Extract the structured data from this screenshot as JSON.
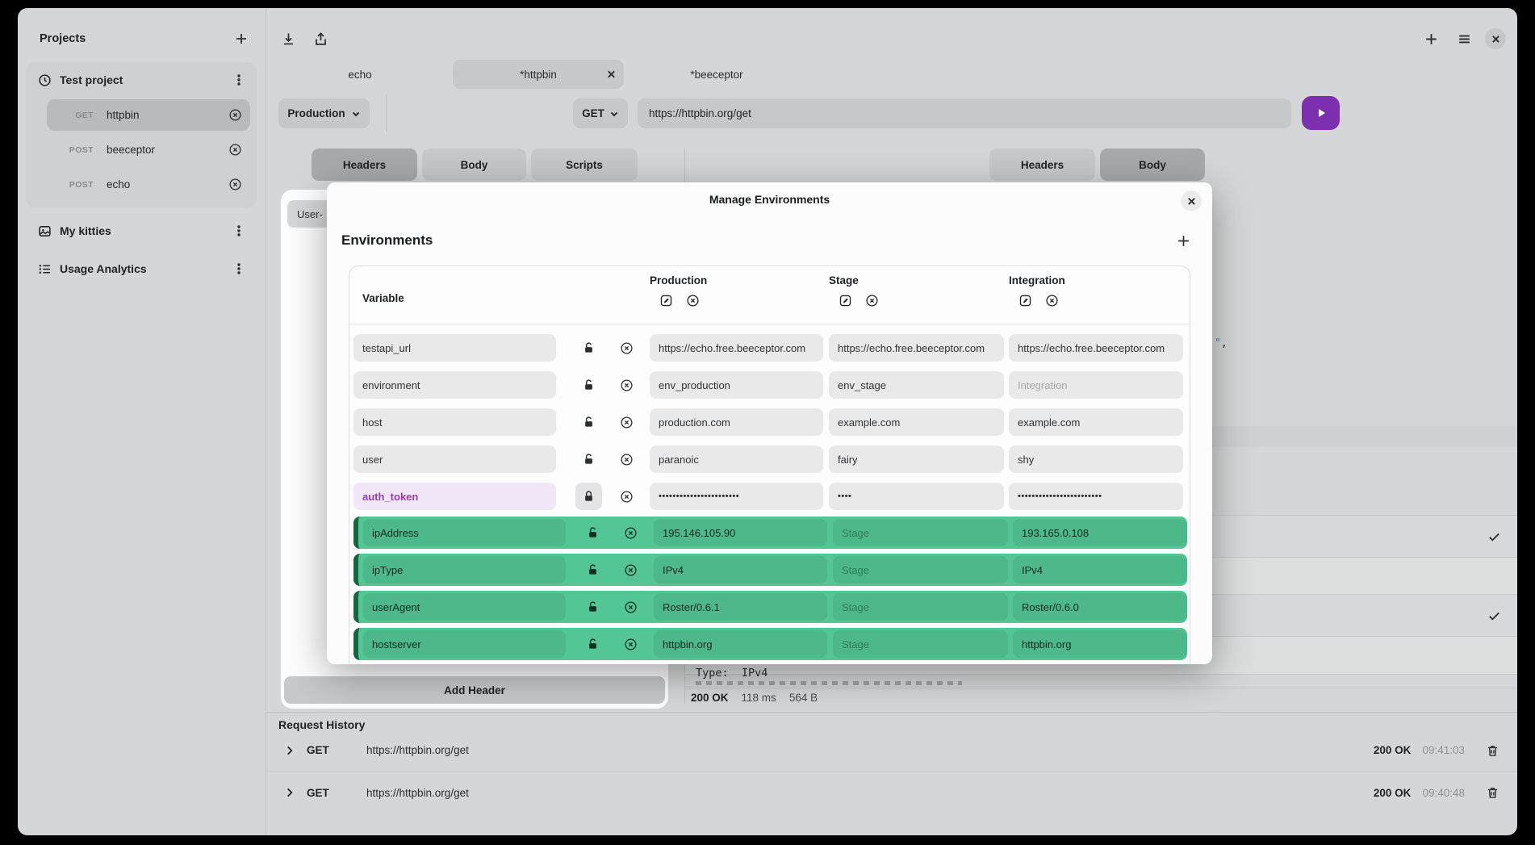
{
  "window_controls": {
    "new_tab": "+",
    "close": "x"
  },
  "sidebar": {
    "title": "Projects",
    "project": {
      "name": "Test project",
      "requests": [
        {
          "method": "GET",
          "name": "httpbin",
          "selected": true
        },
        {
          "method": "POST",
          "name": "beeceptor",
          "selected": false
        },
        {
          "method": "POST",
          "name": "echo",
          "selected": false
        }
      ]
    },
    "workspaces": [
      {
        "label": "My kitties"
      },
      {
        "label": "Usage Analytics"
      }
    ]
  },
  "tabs": {
    "items": [
      {
        "label": "echo",
        "active": false
      },
      {
        "label": "*httpbin",
        "active": true
      },
      {
        "label": "*beeceptor",
        "active": false
      }
    ]
  },
  "request_bar": {
    "environment": "Production",
    "method": "GET",
    "url": "https://httpbin.org/get"
  },
  "request_tabs": {
    "headers": "Headers",
    "body": "Body",
    "scripts": "Scripts",
    "active": "Headers"
  },
  "response_tabs": {
    "headers": "Headers",
    "body": "Body",
    "active": "Body"
  },
  "request_panel": {
    "header_name_chip": "User-",
    "add_header": "Add Header"
  },
  "response": {
    "body_fragment_quote": "\"",
    "body_fragment_comma": ",",
    "type_line": "Type:  IPv4",
    "status": "200 OK",
    "duration": "118 ms",
    "size": "564 B"
  },
  "environments_modal": {
    "title": "Manage Environments",
    "section_title": "Environments",
    "variable_column": "Variable",
    "environments": [
      "Production",
      "Stage",
      "Integration"
    ],
    "variables": [
      {
        "name": "testapi_url",
        "style": "normal",
        "values": [
          "https://echo.free.beeceptor.com",
          "https://echo.free.beeceptor.com",
          "https://echo.free.beeceptor.com"
        ],
        "placeholders": [
          "",
          "",
          ""
        ]
      },
      {
        "name": "environment",
        "style": "normal",
        "values": [
          "env_production",
          "env_stage",
          ""
        ],
        "placeholders": [
          "",
          "",
          "Integration"
        ]
      },
      {
        "name": "host",
        "style": "normal",
        "values": [
          "production.com",
          "example.com",
          "example.com"
        ],
        "placeholders": [
          "",
          "",
          ""
        ]
      },
      {
        "name": "user",
        "style": "normal",
        "values": [
          "paranoic",
          "fairy",
          "shy"
        ],
        "placeholders": [
          "",
          "",
          ""
        ]
      },
      {
        "name": "auth_token",
        "style": "secret",
        "values": [
          "•••••••••••••••••••••••",
          "••••",
          "••••••••••••••••••••••••"
        ],
        "placeholders": [
          "",
          "",
          ""
        ]
      },
      {
        "name": "ipAddress",
        "style": "generated",
        "values": [
          "195.146.105.90",
          "",
          "193.165.0.108"
        ],
        "placeholders": [
          "",
          "Stage",
          ""
        ]
      },
      {
        "name": "ipType",
        "style": "generated",
        "values": [
          "IPv4",
          "",
          "IPv4"
        ],
        "placeholders": [
          "",
          "Stage",
          ""
        ]
      },
      {
        "name": "userAgent",
        "style": "generated",
        "values": [
          "Roster/0.6.1",
          "",
          "Roster/0.6.0"
        ],
        "placeholders": [
          "",
          "Stage",
          ""
        ]
      },
      {
        "name": "hostserver",
        "style": "generated",
        "values": [
          "httpbin.org",
          "",
          "httpbin.org"
        ],
        "placeholders": [
          "",
          "Stage",
          ""
        ]
      }
    ]
  },
  "history": {
    "title": "Request History",
    "rows": [
      {
        "method": "GET",
        "url": "https://httpbin.org/get",
        "status": "200 OK",
        "time": "09:41:03"
      },
      {
        "method": "GET",
        "url": "https://httpbin.org/get",
        "status": "200 OK",
        "time": "09:40:48"
      }
    ]
  },
  "colors": {
    "generated_row_green": "#54c594",
    "generated_accent_dark_green": "#126740",
    "secret_purple": "#963cb4",
    "send_button_purple": "#7c2fae",
    "window_background": "#d5d6d7"
  }
}
